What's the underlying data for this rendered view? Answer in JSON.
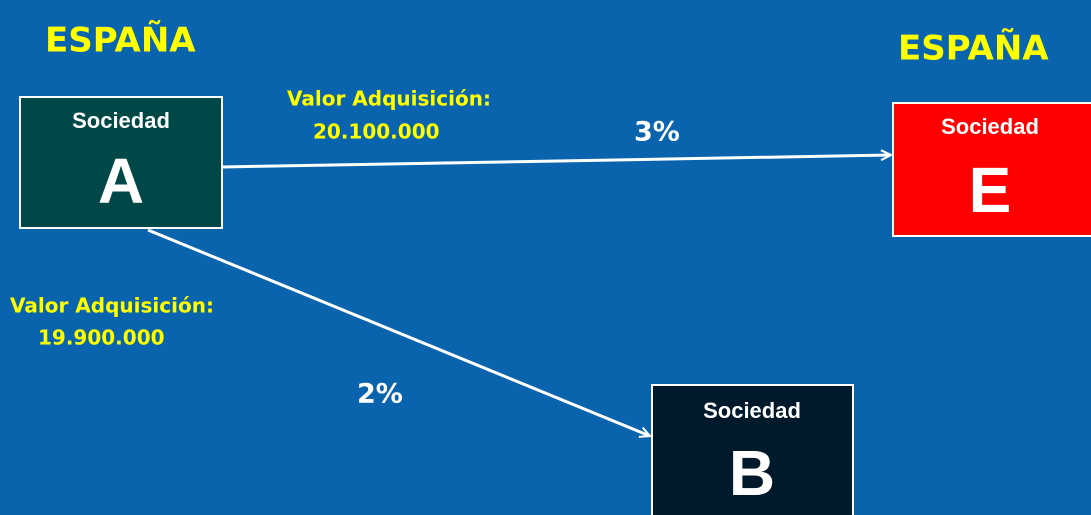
{
  "regions": [
    {
      "label": "ESPAÑA"
    },
    {
      "label": "ESPAÑA"
    }
  ],
  "nodes": [
    {
      "title": "Sociedad",
      "letter": "A"
    },
    {
      "title": "Sociedad",
      "letter": "E"
    },
    {
      "title": "Sociedad",
      "letter": "B"
    }
  ],
  "edges": [
    {
      "label": "Valor Adquisición:",
      "amount": "20.100.000",
      "percent": "3%"
    },
    {
      "label": "Valor Adquisición:",
      "amount": "19.900.000",
      "percent": "2%"
    }
  ]
}
